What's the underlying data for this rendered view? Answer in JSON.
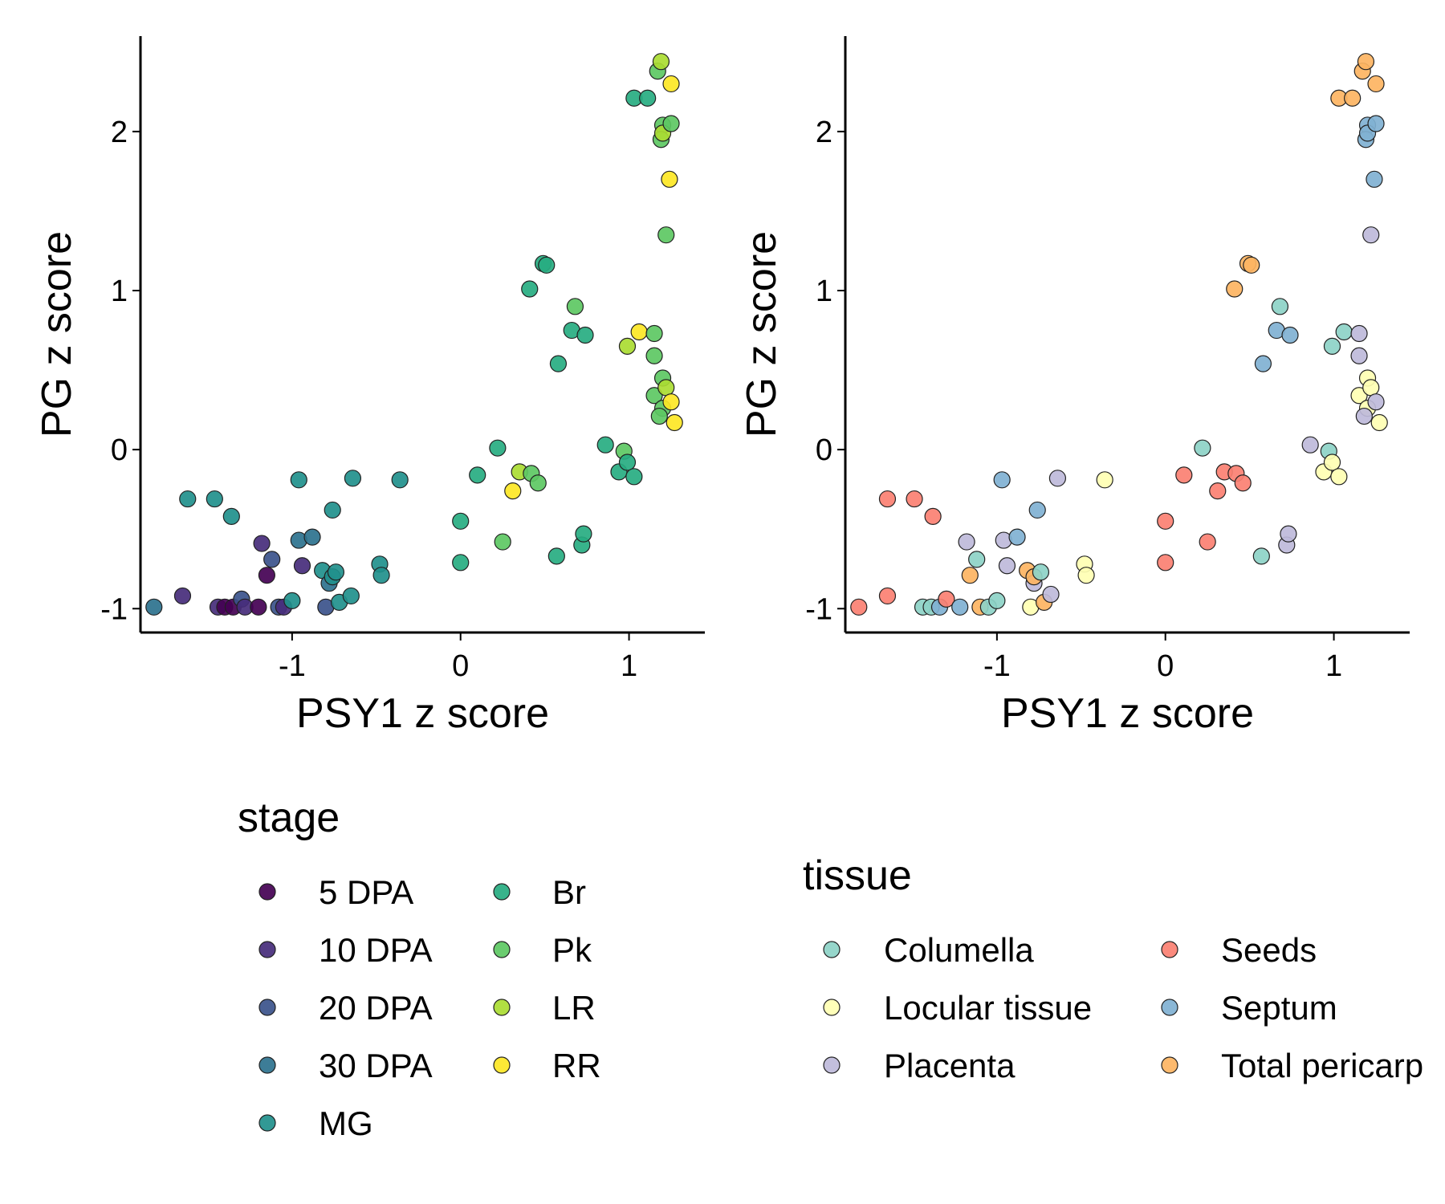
{
  "chart_data": [
    {
      "type": "scatter",
      "xlabel": "PSY1 z score",
      "ylabel": "PG z score",
      "xlim": [
        -1.9,
        1.45
      ],
      "ylim": [
        -1.15,
        2.6
      ],
      "xticks": [
        -1,
        0,
        1
      ],
      "yticks": [
        -1,
        0,
        1,
        2
      ],
      "grid": false,
      "legend": {
        "title": "stage",
        "placement": "bottom-left",
        "columns": 2,
        "entries": [
          {
            "label": "5 DPA",
            "color": "#440154"
          },
          {
            "label": "10 DPA",
            "color": "#472D7B"
          },
          {
            "label": "20 DPA",
            "color": "#3B528B"
          },
          {
            "label": "30 DPA",
            "color": "#2C728E"
          },
          {
            "label": "MG",
            "color": "#21908C"
          },
          {
            "label": "Br",
            "color": "#27AD81"
          },
          {
            "label": "Pk",
            "color": "#5DC863"
          },
          {
            "label": "LR",
            "color": "#AADC32"
          },
          {
            "label": "RR",
            "color": "#FDE725"
          }
        ]
      },
      "points": [
        {
          "x": -1.82,
          "y": -0.99,
          "group": "30 DPA"
        },
        {
          "x": -1.65,
          "y": -0.92,
          "group": "10 DPA"
        },
        {
          "x": -1.44,
          "y": -0.99,
          "group": "10 DPA"
        },
        {
          "x": -1.4,
          "y": -0.99,
          "group": "5 DPA"
        },
        {
          "x": -1.35,
          "y": -0.99,
          "group": "5 DPA"
        },
        {
          "x": -1.3,
          "y": -0.94,
          "group": "20 DPA"
        },
        {
          "x": -1.28,
          "y": -0.99,
          "group": "10 DPA"
        },
        {
          "x": -1.2,
          "y": -0.99,
          "group": "5 DPA"
        },
        {
          "x": -1.18,
          "y": -0.59,
          "group": "10 DPA"
        },
        {
          "x": -1.15,
          "y": -0.79,
          "group": "5 DPA"
        },
        {
          "x": -1.12,
          "y": -0.69,
          "group": "20 DPA"
        },
        {
          "x": -1.08,
          "y": -0.99,
          "group": "20 DPA"
        },
        {
          "x": -1.05,
          "y": -0.99,
          "group": "10 DPA"
        },
        {
          "x": -0.94,
          "y": -0.73,
          "group": "10 DPA"
        },
        {
          "x": -0.96,
          "y": -0.57,
          "group": "30 DPA"
        },
        {
          "x": -0.88,
          "y": -0.55,
          "group": "30 DPA"
        },
        {
          "x": -0.8,
          "y": -0.99,
          "group": "20 DPA"
        },
        {
          "x": -0.82,
          "y": -0.76,
          "group": "MG"
        },
        {
          "x": -0.78,
          "y": -0.84,
          "group": "30 DPA"
        },
        {
          "x": -0.76,
          "y": -0.8,
          "group": "MG"
        },
        {
          "x": -0.74,
          "y": -0.77,
          "group": "MG"
        },
        {
          "x": -0.72,
          "y": -0.96,
          "group": "MG"
        },
        {
          "x": -0.65,
          "y": -0.92,
          "group": "MG"
        },
        {
          "x": -1.0,
          "y": -0.95,
          "group": "MG"
        },
        {
          "x": -1.62,
          "y": -0.31,
          "group": "MG"
        },
        {
          "x": -1.46,
          "y": -0.31,
          "group": "MG"
        },
        {
          "x": -1.36,
          "y": -0.42,
          "group": "MG"
        },
        {
          "x": -0.96,
          "y": -0.19,
          "group": "MG"
        },
        {
          "x": -0.76,
          "y": -0.38,
          "group": "MG"
        },
        {
          "x": -0.64,
          "y": -0.18,
          "group": "MG"
        },
        {
          "x": -0.48,
          "y": -0.72,
          "group": "MG"
        },
        {
          "x": -0.47,
          "y": -0.79,
          "group": "MG"
        },
        {
          "x": -0.36,
          "y": -0.19,
          "group": "MG"
        },
        {
          "x": 0.0,
          "y": -0.45,
          "group": "Br"
        },
        {
          "x": 0.0,
          "y": -0.71,
          "group": "Br"
        },
        {
          "x": 0.1,
          "y": -0.16,
          "group": "Br"
        },
        {
          "x": 0.22,
          "y": 0.01,
          "group": "Br"
        },
        {
          "x": 0.25,
          "y": -0.58,
          "group": "Pk"
        },
        {
          "x": 0.31,
          "y": -0.26,
          "group": "RR"
        },
        {
          "x": 0.35,
          "y": -0.14,
          "group": "LR"
        },
        {
          "x": 0.42,
          "y": -0.15,
          "group": "Pk"
        },
        {
          "x": 0.46,
          "y": -0.21,
          "group": "Pk"
        },
        {
          "x": 0.41,
          "y": 1.01,
          "group": "Br"
        },
        {
          "x": 0.49,
          "y": 1.17,
          "group": "Br"
        },
        {
          "x": 0.51,
          "y": 1.16,
          "group": "Br"
        },
        {
          "x": 0.57,
          "y": -0.67,
          "group": "Br"
        },
        {
          "x": 0.58,
          "y": 0.54,
          "group": "Br"
        },
        {
          "x": 0.66,
          "y": 0.75,
          "group": "Br"
        },
        {
          "x": 0.68,
          "y": 0.9,
          "group": "Pk"
        },
        {
          "x": 0.72,
          "y": -0.6,
          "group": "Br"
        },
        {
          "x": 0.73,
          "y": -0.53,
          "group": "Br"
        },
        {
          "x": 0.74,
          "y": 0.72,
          "group": "Br"
        },
        {
          "x": 0.86,
          "y": 0.03,
          "group": "Br"
        },
        {
          "x": 0.94,
          "y": -0.14,
          "group": "Br"
        },
        {
          "x": 0.97,
          "y": -0.01,
          "group": "Pk"
        },
        {
          "x": 0.99,
          "y": -0.08,
          "group": "Br"
        },
        {
          "x": 1.03,
          "y": -0.17,
          "group": "Br"
        },
        {
          "x": 0.99,
          "y": 0.65,
          "group": "LR"
        },
        {
          "x": 1.06,
          "y": 0.74,
          "group": "RR"
        },
        {
          "x": 1.03,
          "y": 2.21,
          "group": "Br"
        },
        {
          "x": 1.11,
          "y": 2.21,
          "group": "Br"
        },
        {
          "x": 1.15,
          "y": 0.73,
          "group": "Pk"
        },
        {
          "x": 1.15,
          "y": 0.59,
          "group": "Pk"
        },
        {
          "x": 1.17,
          "y": 2.38,
          "group": "Pk"
        },
        {
          "x": 1.19,
          "y": 2.44,
          "group": "LR"
        },
        {
          "x": 1.2,
          "y": 2.04,
          "group": "Pk"
        },
        {
          "x": 1.19,
          "y": 1.95,
          "group": "Pk"
        },
        {
          "x": 1.2,
          "y": 1.99,
          "group": "LR"
        },
        {
          "x": 1.25,
          "y": 2.05,
          "group": "Pk"
        },
        {
          "x": 1.25,
          "y": 2.3,
          "group": "RR"
        },
        {
          "x": 1.24,
          "y": 1.7,
          "group": "RR"
        },
        {
          "x": 1.22,
          "y": 1.35,
          "group": "Pk"
        },
        {
          "x": 1.2,
          "y": 0.45,
          "group": "Pk"
        },
        {
          "x": 1.15,
          "y": 0.34,
          "group": "Pk"
        },
        {
          "x": 1.22,
          "y": 0.39,
          "group": "LR"
        },
        {
          "x": 1.2,
          "y": 0.26,
          "group": "Pk"
        },
        {
          "x": 1.18,
          "y": 0.21,
          "group": "Pk"
        },
        {
          "x": 1.25,
          "y": 0.3,
          "group": "RR"
        },
        {
          "x": 1.27,
          "y": 0.17,
          "group": "RR"
        }
      ]
    },
    {
      "type": "scatter",
      "xlabel": "PSY1 z score",
      "ylabel": "PG z score",
      "xlim": [
        -1.9,
        1.45
      ],
      "ylim": [
        -1.15,
        2.6
      ],
      "xticks": [
        -1,
        0,
        1
      ],
      "yticks": [
        -1,
        0,
        1,
        2
      ],
      "grid": false,
      "legend": {
        "title": "tissue",
        "placement": "bottom-right",
        "columns": 2,
        "entries": [
          {
            "label": "Columella",
            "color": "#8DD3C7"
          },
          {
            "label": "Locular tissue",
            "color": "#FFFFB3"
          },
          {
            "label": "Placenta",
            "color": "#BEBADA"
          },
          {
            "label": "Seeds",
            "color": "#FB8072"
          },
          {
            "label": "Septum",
            "color": "#80B1D3"
          },
          {
            "label": "Total pericarp",
            "color": "#FDB462"
          }
        ]
      },
      "points": [
        {
          "x": -1.82,
          "y": -0.99,
          "group": "Seeds"
        },
        {
          "x": -1.65,
          "y": -0.92,
          "group": "Seeds"
        },
        {
          "x": -1.65,
          "y": -0.31,
          "group": "Seeds"
        },
        {
          "x": -1.49,
          "y": -0.31,
          "group": "Seeds"
        },
        {
          "x": -1.38,
          "y": -0.42,
          "group": "Seeds"
        },
        {
          "x": -1.44,
          "y": -0.99,
          "group": "Columella"
        },
        {
          "x": -1.39,
          "y": -0.99,
          "group": "Columella"
        },
        {
          "x": -1.34,
          "y": -0.99,
          "group": "Septum"
        },
        {
          "x": -1.3,
          "y": -0.94,
          "group": "Seeds"
        },
        {
          "x": -1.22,
          "y": -0.99,
          "group": "Septum"
        },
        {
          "x": -1.18,
          "y": -0.58,
          "group": "Placenta"
        },
        {
          "x": -1.16,
          "y": -0.79,
          "group": "Total pericarp"
        },
        {
          "x": -1.12,
          "y": -0.69,
          "group": "Columella"
        },
        {
          "x": -1.1,
          "y": -0.99,
          "group": "Total pericarp"
        },
        {
          "x": -1.05,
          "y": -0.99,
          "group": "Columella"
        },
        {
          "x": -1.0,
          "y": -0.95,
          "group": "Columella"
        },
        {
          "x": -0.97,
          "y": -0.19,
          "group": "Septum"
        },
        {
          "x": -0.96,
          "y": -0.57,
          "group": "Placenta"
        },
        {
          "x": -0.94,
          "y": -0.73,
          "group": "Placenta"
        },
        {
          "x": -0.88,
          "y": -0.55,
          "group": "Septum"
        },
        {
          "x": -0.82,
          "y": -0.76,
          "group": "Total pericarp"
        },
        {
          "x": -0.8,
          "y": -0.99,
          "group": "Locular tissue"
        },
        {
          "x": -0.78,
          "y": -0.84,
          "group": "Placenta"
        },
        {
          "x": -0.78,
          "y": -0.8,
          "group": "Total pericarp"
        },
        {
          "x": -0.76,
          "y": -0.38,
          "group": "Septum"
        },
        {
          "x": -0.74,
          "y": -0.77,
          "group": "Columella"
        },
        {
          "x": -0.72,
          "y": -0.96,
          "group": "Total pericarp"
        },
        {
          "x": -0.68,
          "y": -0.91,
          "group": "Placenta"
        },
        {
          "x": -0.64,
          "y": -0.18,
          "group": "Placenta"
        },
        {
          "x": -0.48,
          "y": -0.72,
          "group": "Locular tissue"
        },
        {
          "x": -0.47,
          "y": -0.79,
          "group": "Locular tissue"
        },
        {
          "x": -0.36,
          "y": -0.19,
          "group": "Locular tissue"
        },
        {
          "x": 0.0,
          "y": -0.45,
          "group": "Seeds"
        },
        {
          "x": 0.0,
          "y": -0.71,
          "group": "Seeds"
        },
        {
          "x": 0.11,
          "y": -0.16,
          "group": "Seeds"
        },
        {
          "x": 0.22,
          "y": 0.01,
          "group": "Columella"
        },
        {
          "x": 0.25,
          "y": -0.58,
          "group": "Seeds"
        },
        {
          "x": 0.31,
          "y": -0.26,
          "group": "Seeds"
        },
        {
          "x": 0.35,
          "y": -0.14,
          "group": "Seeds"
        },
        {
          "x": 0.42,
          "y": -0.15,
          "group": "Seeds"
        },
        {
          "x": 0.46,
          "y": -0.21,
          "group": "Seeds"
        },
        {
          "x": 0.41,
          "y": 1.01,
          "group": "Total pericarp"
        },
        {
          "x": 0.49,
          "y": 1.17,
          "group": "Total pericarp"
        },
        {
          "x": 0.51,
          "y": 1.16,
          "group": "Total pericarp"
        },
        {
          "x": 0.57,
          "y": -0.67,
          "group": "Columella"
        },
        {
          "x": 0.58,
          "y": 0.54,
          "group": "Septum"
        },
        {
          "x": 0.66,
          "y": 0.75,
          "group": "Septum"
        },
        {
          "x": 0.68,
          "y": 0.9,
          "group": "Columella"
        },
        {
          "x": 0.72,
          "y": -0.6,
          "group": "Placenta"
        },
        {
          "x": 0.73,
          "y": -0.53,
          "group": "Placenta"
        },
        {
          "x": 0.74,
          "y": 0.72,
          "group": "Septum"
        },
        {
          "x": 0.86,
          "y": 0.03,
          "group": "Placenta"
        },
        {
          "x": 0.94,
          "y": -0.14,
          "group": "Locular tissue"
        },
        {
          "x": 0.97,
          "y": -0.01,
          "group": "Columella"
        },
        {
          "x": 0.99,
          "y": -0.08,
          "group": "Locular tissue"
        },
        {
          "x": 1.03,
          "y": -0.17,
          "group": "Locular tissue"
        },
        {
          "x": 0.99,
          "y": 0.65,
          "group": "Columella"
        },
        {
          "x": 1.06,
          "y": 0.74,
          "group": "Columella"
        },
        {
          "x": 1.03,
          "y": 2.21,
          "group": "Total pericarp"
        },
        {
          "x": 1.11,
          "y": 2.21,
          "group": "Total pericarp"
        },
        {
          "x": 1.15,
          "y": 0.73,
          "group": "Placenta"
        },
        {
          "x": 1.15,
          "y": 0.59,
          "group": "Placenta"
        },
        {
          "x": 1.17,
          "y": 2.38,
          "group": "Total pericarp"
        },
        {
          "x": 1.19,
          "y": 2.44,
          "group": "Total pericarp"
        },
        {
          "x": 1.2,
          "y": 2.04,
          "group": "Septum"
        },
        {
          "x": 1.19,
          "y": 1.95,
          "group": "Septum"
        },
        {
          "x": 1.2,
          "y": 1.99,
          "group": "Septum"
        },
        {
          "x": 1.25,
          "y": 2.05,
          "group": "Septum"
        },
        {
          "x": 1.25,
          "y": 2.3,
          "group": "Total pericarp"
        },
        {
          "x": 1.24,
          "y": 1.7,
          "group": "Septum"
        },
        {
          "x": 1.22,
          "y": 1.35,
          "group": "Placenta"
        },
        {
          "x": 1.2,
          "y": 0.45,
          "group": "Locular tissue"
        },
        {
          "x": 1.15,
          "y": 0.34,
          "group": "Locular tissue"
        },
        {
          "x": 1.22,
          "y": 0.39,
          "group": "Locular tissue"
        },
        {
          "x": 1.2,
          "y": 0.26,
          "group": "Locular tissue"
        },
        {
          "x": 1.18,
          "y": 0.21,
          "group": "Placenta"
        },
        {
          "x": 1.25,
          "y": 0.3,
          "group": "Placenta"
        },
        {
          "x": 1.27,
          "y": 0.17,
          "group": "Locular tissue"
        }
      ]
    }
  ]
}
